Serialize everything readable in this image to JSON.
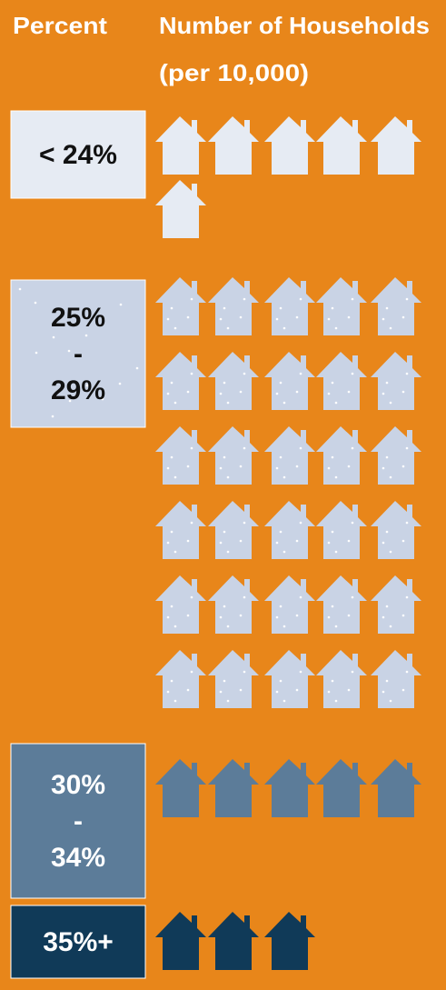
{
  "chart_data": {
    "type": "pictograph",
    "column_headers": [
      "Percent",
      "Number of Households",
      "(per 10,000)"
    ],
    "categories": [
      [
        "< 24%"
      ],
      [
        "25%",
        "-",
        "29%"
      ],
      [
        "30%",
        "-",
        "34%"
      ],
      [
        "35%+"
      ]
    ],
    "values": [
      6,
      30,
      5,
      3
    ],
    "colors": [
      "#e6ebf3",
      "#c9d3e5",
      "#5c7c99",
      "#103a58"
    ],
    "label_colors": [
      "#111111",
      "#111111",
      "#ffffff",
      "#ffffff"
    ],
    "background": "#e8861a"
  }
}
